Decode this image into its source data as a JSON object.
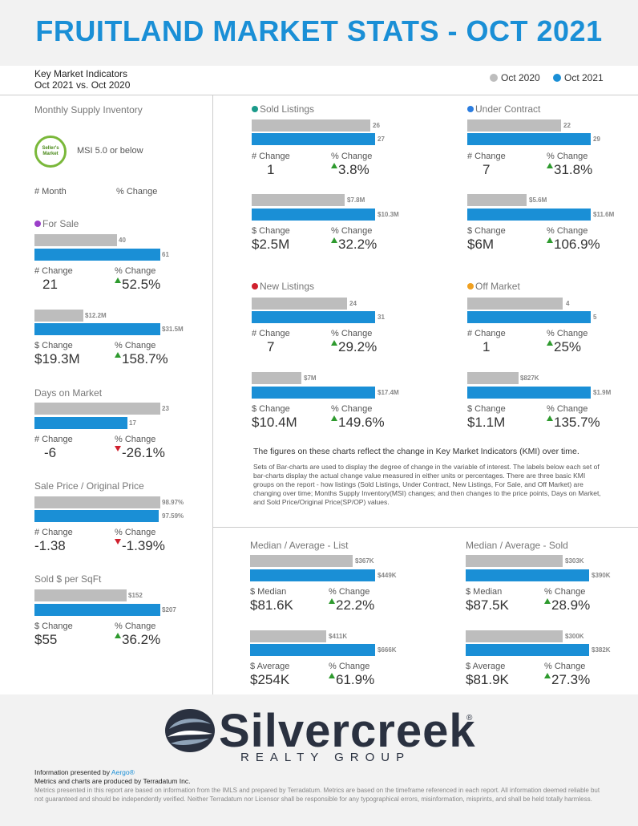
{
  "header": {
    "title": "FRUITLAND MARKET STATS - OCT 2021",
    "kmi_line1": "Key Market Indicators",
    "kmi_line2": "Oct 2021 vs. Oct 2020",
    "legend_prev": "Oct 2020",
    "legend_curr": "Oct 2021",
    "color_prev": "#bdbdbd",
    "color_curr": "#1a8fd6"
  },
  "left": {
    "msi": {
      "title": "Monthly Supply Inventory",
      "badge_line1": "Seller's",
      "badge_line2": "Market",
      "badge_text": "MSI 5.0 or below",
      "col1": "# Month",
      "col2": "% Change"
    },
    "for_sale": {
      "title": "For Sale",
      "dot_color": "#9b3fc9",
      "prev": "40",
      "curr": "61",
      "chg_label": "# Change",
      "chg": "21",
      "pct_label": "% Change",
      "pct": "52.5%",
      "prev2": "$12.2M",
      "curr2": "$31.5M",
      "chg_label2": "$ Change",
      "chg2": "$19.3M",
      "pct_label2": "% Change",
      "pct2": "158.7%"
    },
    "dom": {
      "title": "Days on Market",
      "prev": "23",
      "curr": "17",
      "chg_label": "# Change",
      "chg": "-6",
      "pct_label": "% Change",
      "pct": "-26.1%"
    },
    "sp_op": {
      "title": "Sale Price / Original Price",
      "prev": "98.97%",
      "curr": "97.59%",
      "chg_label": "# Change",
      "chg": "-1.38",
      "pct_label": "% Change",
      "pct": "-1.39%"
    },
    "sqft": {
      "title": "Sold $ per SqFt",
      "prev": "$152",
      "curr": "$207",
      "chg_label": "$ Change",
      "chg": "$55",
      "pct_label": "% Change",
      "pct": "36.2%"
    }
  },
  "sold": {
    "title": "Sold Listings",
    "dot_color": "#1a9a8a",
    "prev": "26",
    "curr": "27",
    "chg_label": "# Change",
    "chg": "1",
    "pct_label": "% Change",
    "pct": "3.8%",
    "prev2": "$7.8M",
    "curr2": "$10.3M",
    "chg_label2": "$ Change",
    "chg2": "$2.5M",
    "pct_label2": "% Change",
    "pct2": "32.2%"
  },
  "under": {
    "title": "Under Contract",
    "dot_color": "#2b7de0",
    "prev": "22",
    "curr": "29",
    "chg_label": "# Change",
    "chg": "7",
    "pct_label": "% Change",
    "pct": "31.8%",
    "prev2": "$5.6M",
    "curr2": "$11.6M",
    "chg_label2": "$ Change",
    "chg2": "$6M",
    "pct_label2": "% Change",
    "pct2": "106.9%"
  },
  "newl": {
    "title": "New Listings",
    "dot_color": "#d0202e",
    "prev": "24",
    "curr": "31",
    "chg_label": "# Change",
    "chg": "7",
    "pct_label": "% Change",
    "pct": "29.2%",
    "prev2": "$7M",
    "curr2": "$17.4M",
    "chg_label2": "$ Change",
    "chg2": "$10.4M",
    "pct_label2": "% Change",
    "pct2": "149.6%"
  },
  "offm": {
    "title": "Off Market",
    "dot_color": "#f0a020",
    "prev": "4",
    "curr": "5",
    "chg_label": "# Change",
    "chg": "1",
    "pct_label": "% Change",
    "pct": "25%",
    "prev2": "$827K",
    "curr2": "$1.9M",
    "chg_label2": "$ Change",
    "chg2": "$1.1M",
    "pct_label2": "% Change",
    "pct2": "135.7%"
  },
  "notes": {
    "bold": "The figures on these charts reflect the change in Key Market Indicators (KMI) over time.",
    "body": "Sets of Bar-charts are used to display the degree of change in the variable of interest. The labels below each set of bar-charts display the actual change value measured in either units or percentages. There are three basic KMI groups on the report - how listings (Sold Listings, Under Contract, New Listings, For Sale, and Off Market) are changing over time; Months Supply Inventory(MSI) changes; and then changes to the price points, Days on Market, and Sold Price/Original Price(SP/OP) values."
  },
  "list_price": {
    "title": "Median / Average - List",
    "prev": "$367K",
    "curr": "$449K",
    "chg_label": "$ Median",
    "chg": "$81.6K",
    "pct_label": "% Change",
    "pct": "22.2%",
    "prev2": "$411K",
    "curr2": "$666K",
    "chg_label2": "$ Average",
    "chg2": "$254K",
    "pct_label2": "% Change",
    "pct2": "61.9%"
  },
  "sold_price": {
    "title": "Median / Average - Sold",
    "prev": "$303K",
    "curr": "$390K",
    "chg_label": "$ Median",
    "chg": "$87.5K",
    "pct_label": "% Change",
    "pct": "28.9%",
    "prev2": "$300K",
    "curr2": "$382K",
    "chg_label2": "$ Average",
    "chg2": "$81.9K",
    "pct_label2": "% Change",
    "pct2": "27.3%"
  },
  "footer": {
    "logo": "Silvercreek",
    "logo_sub": "REALTY GROUP",
    "reg": "®",
    "presented_prefix": "Information presented by ",
    "presented_link": "Aergo®",
    "produced": "Metrics and charts are produced by Terradatum Inc.",
    "disclaimer": "Metrics presented in this report are based on information from the IMLS and prepared by Terradatum. Metrics are based on the timeframe referenced in each report. All information deemed reliable but not guaranteed and should be independently verified. Neither Terradatum nor Licensor shall be responsible for any typographical errors, misinformation, misprints, and shall be held totally harmless."
  }
}
